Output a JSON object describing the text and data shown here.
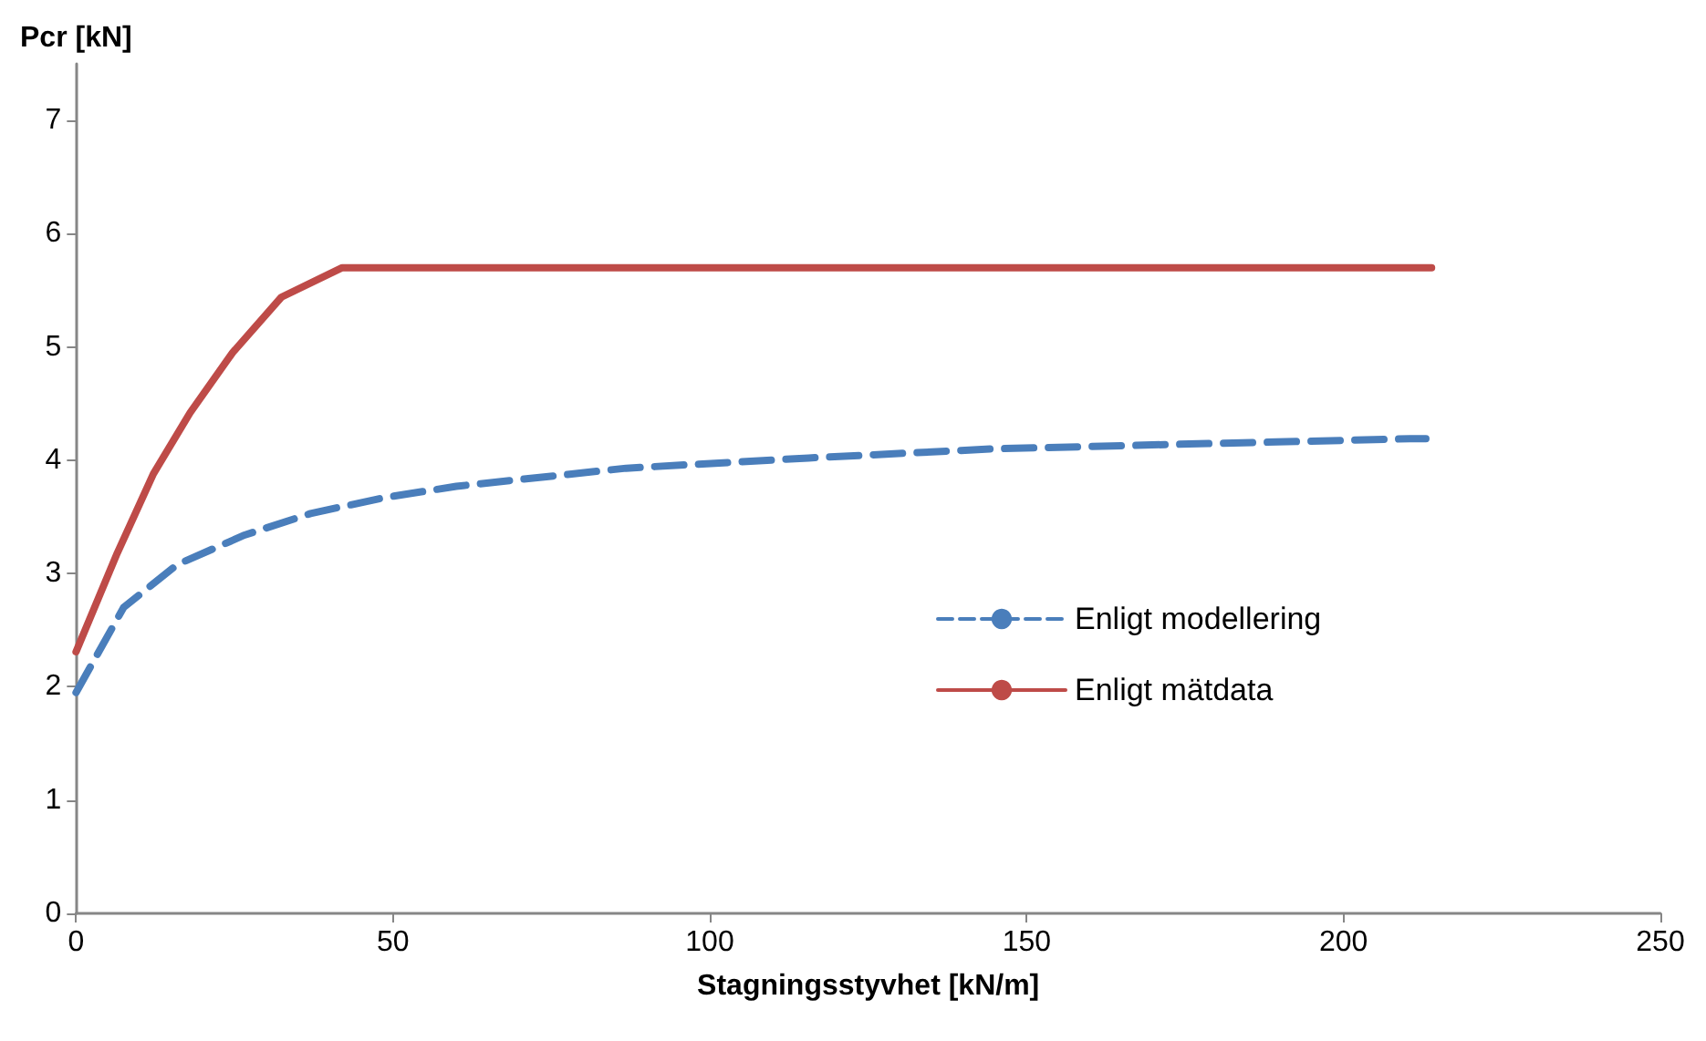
{
  "chart_data": {
    "type": "line",
    "xlabel": "Stagningsstyvhet [kN/m]",
    "ylabel": "Pcr [kN]",
    "xlim": [
      0,
      250
    ],
    "xticks": [
      0,
      50,
      100,
      150,
      200,
      250
    ],
    "ylim": [
      0,
      7.5
    ],
    "yticks": [
      0,
      1,
      2,
      3,
      4,
      5,
      6,
      7
    ],
    "grid": false,
    "legend": "right",
    "marker": "none",
    "series": [
      {
        "name": "Enligt modellering",
        "color": "#4a7ebb",
        "line_style": "dashed",
        "x": [
          0,
          2.7,
          7.5,
          16,
          26.6,
          37,
          48.6,
          60,
          86.8,
          115.6,
          144.3,
          173,
          210.5,
          213
        ],
        "values": [
          1.95,
          2.22,
          2.7,
          3.08,
          3.34,
          3.53,
          3.67,
          3.77,
          3.93,
          4.02,
          4.1,
          4.14,
          4.19,
          4.19
        ]
      },
      {
        "name": "Enligt mätdata",
        "color": "#be4b48",
        "line_style": "solid",
        "x": [
          0,
          6.5,
          12.2,
          18,
          24.7,
          32.4,
          42,
          213.9
        ],
        "values": [
          2.31,
          3.18,
          3.88,
          4.42,
          4.95,
          5.44,
          5.7,
          5.7
        ]
      }
    ]
  }
}
